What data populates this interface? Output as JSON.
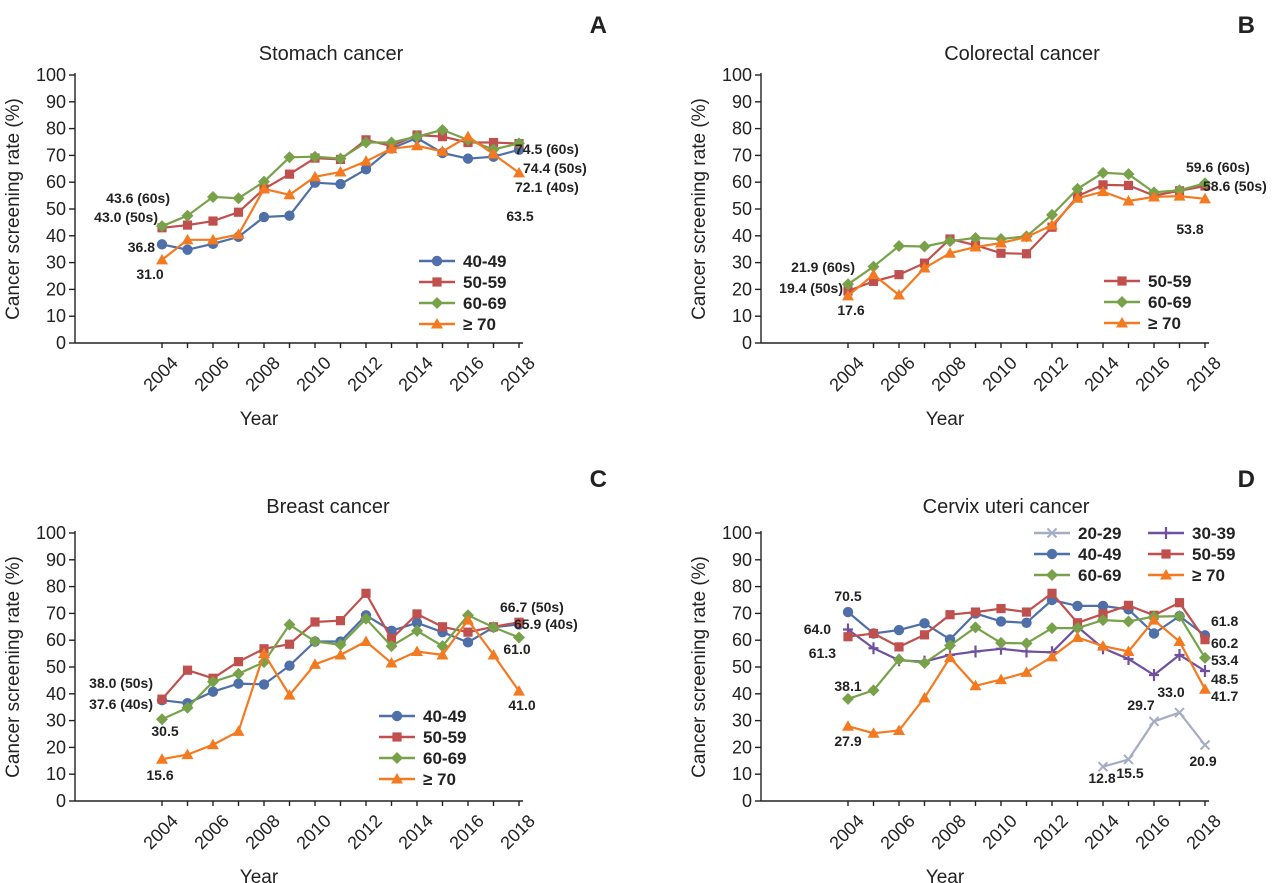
{
  "chart_data": [
    {
      "type": "line",
      "panel": "A",
      "title": "Stomach cancer",
      "xlabel": "Year",
      "ylabel": "Cancer screening rate (%)",
      "ylim": [
        0,
        100
      ],
      "yticks": [
        0,
        10,
        20,
        30,
        40,
        50,
        60,
        70,
        80,
        90,
        100
      ],
      "xtick_labels": [
        "2004",
        "2006",
        "2008",
        "2010",
        "2012",
        "2014",
        "2016",
        "2018"
      ],
      "x": [
        2004,
        2005,
        2006,
        2007,
        2008,
        2009,
        2010,
        2011,
        2012,
        2013,
        2014,
        2015,
        2016,
        2017,
        2018
      ],
      "legend_position": "bottom-right",
      "series": [
        {
          "name": "40-49",
          "color": "#4f6fa8",
          "marker": "circle",
          "values": [
            36.8,
            34.8,
            37.0,
            39.6,
            47.0,
            47.5,
            59.8,
            59.3,
            64.8,
            72.6,
            76.5,
            70.9,
            68.8,
            69.5,
            72.1
          ]
        },
        {
          "name": "50-59",
          "color": "#c0504d",
          "marker": "square",
          "values": [
            43.0,
            44.0,
            45.5,
            48.8,
            57.5,
            63.0,
            69.0,
            68.5,
            75.8,
            73.5,
            77.6,
            77.0,
            74.8,
            74.8,
            74.4
          ]
        },
        {
          "name": "60-69",
          "color": "#77a24a",
          "marker": "diamond",
          "values": [
            43.6,
            47.5,
            54.5,
            54.0,
            60.2,
            69.3,
            69.5,
            68.8,
            74.8,
            74.8,
            77.0,
            79.5,
            75.8,
            72.2,
            74.5
          ]
        },
        {
          "name": "≥ 70",
          "color": "#f47a21",
          "marker": "triangle",
          "values": [
            31.0,
            38.5,
            38.5,
            40.5,
            57.5,
            55.3,
            62.0,
            63.8,
            67.8,
            72.5,
            73.6,
            71.5,
            77.0,
            70.5,
            63.5
          ]
        }
      ],
      "annotations": [
        {
          "text": "43.6 (60s)",
          "x": 2004,
          "y": 43.6
        },
        {
          "text": "43.0 (50s)",
          "x": 2004,
          "y": 43.0
        },
        {
          "text": "36.8",
          "x": 2004,
          "y": 36.8
        },
        {
          "text": "31.0",
          "x": 2004,
          "y": 31.0
        },
        {
          "text": "74.5 (60s)",
          "x": 2018,
          "y": 74.5
        },
        {
          "text": "74.4 (50s)",
          "x": 2018,
          "y": 74.4
        },
        {
          "text": "72.1 (40s)",
          "x": 2018,
          "y": 72.1
        },
        {
          "text": "63.5",
          "x": 2018,
          "y": 63.5
        }
      ]
    },
    {
      "type": "line",
      "panel": "B",
      "title": "Colorectal cancer",
      "xlabel": "Year",
      "ylabel": "Cancer screening rate (%)",
      "ylim": [
        0,
        100
      ],
      "yticks": [
        0,
        10,
        20,
        30,
        40,
        50,
        60,
        70,
        80,
        90,
        100
      ],
      "xtick_labels": [
        "2004",
        "2006",
        "2008",
        "2010",
        "2012",
        "2014",
        "2016",
        "2018"
      ],
      "x": [
        2004,
        2005,
        2006,
        2007,
        2008,
        2009,
        2010,
        2011,
        2012,
        2013,
        2014,
        2015,
        2016,
        2017,
        2018
      ],
      "legend_position": "bottom-right",
      "series": [
        {
          "name": "50-59",
          "color": "#c0504d",
          "marker": "square",
          "values": [
            19.4,
            23.0,
            25.5,
            29.8,
            38.8,
            36.5,
            33.5,
            33.3,
            43.2,
            54.8,
            59.0,
            58.8,
            55.0,
            56.8,
            58.6
          ]
        },
        {
          "name": "60-69",
          "color": "#77a24a",
          "marker": "diamond",
          "values": [
            21.9,
            28.5,
            36.2,
            36.0,
            38.0,
            39.2,
            38.8,
            39.8,
            47.8,
            57.5,
            63.5,
            63.0,
            56.2,
            57.0,
            59.6
          ]
        },
        {
          "name": "≥ 70",
          "color": "#f47a21",
          "marker": "triangle",
          "values": [
            17.6,
            25.5,
            17.9,
            28.0,
            33.5,
            35.8,
            37.3,
            39.5,
            44.0,
            54.0,
            56.5,
            53.0,
            54.5,
            54.8,
            53.8
          ]
        }
      ],
      "annotations": [
        {
          "text": "21.9 (60s)",
          "x": 2004,
          "y": 21.9
        },
        {
          "text": "19.4 (50s)",
          "x": 2004,
          "y": 19.4
        },
        {
          "text": "17.6",
          "x": 2004,
          "y": 17.6
        },
        {
          "text": "59.6 (60s)",
          "x": 2018,
          "y": 59.6
        },
        {
          "text": "58.6 (50s)",
          "x": 2018,
          "y": 58.6
        },
        {
          "text": "53.8",
          "x": 2018,
          "y": 53.8
        }
      ]
    },
    {
      "type": "line",
      "panel": "C",
      "title": "Breast cancer",
      "xlabel": "Year",
      "ylabel": "Cancer screening rate (%)",
      "ylim": [
        0,
        100
      ],
      "yticks": [
        0,
        10,
        20,
        30,
        40,
        50,
        60,
        70,
        80,
        90,
        100
      ],
      "xtick_labels": [
        "2004",
        "2006",
        "2008",
        "2010",
        "2012",
        "2014",
        "2016",
        "2018"
      ],
      "x": [
        2004,
        2005,
        2006,
        2007,
        2008,
        2009,
        2010,
        2011,
        2012,
        2013,
        2014,
        2015,
        2016,
        2017,
        2018
      ],
      "legend_position": "bottom-right",
      "series": [
        {
          "name": "40-49",
          "color": "#4f6fa8",
          "marker": "circle",
          "values": [
            37.6,
            36.5,
            40.8,
            43.8,
            43.5,
            50.5,
            59.5,
            59.5,
            69.3,
            63.5,
            66.5,
            63.0,
            59.2,
            64.8,
            65.9
          ]
        },
        {
          "name": "50-59",
          "color": "#c0504d",
          "marker": "square",
          "values": [
            38.0,
            48.8,
            45.8,
            52.0,
            56.8,
            58.5,
            66.8,
            67.3,
            77.5,
            60.5,
            69.8,
            65.0,
            63.0,
            65.0,
            66.7
          ]
        },
        {
          "name": "60-69",
          "color": "#77a24a",
          "marker": "diamond",
          "values": [
            30.5,
            34.8,
            44.5,
            47.5,
            51.8,
            65.8,
            59.5,
            58.3,
            68.0,
            57.8,
            63.5,
            57.8,
            69.3,
            64.8,
            61.0
          ]
        },
        {
          "name": "≥ 70",
          "color": "#f47a21",
          "marker": "triangle",
          "values": [
            15.6,
            17.3,
            21.0,
            26.0,
            55.0,
            39.5,
            51.0,
            54.5,
            59.5,
            51.5,
            55.8,
            54.5,
            67.5,
            54.5,
            41.0
          ]
        }
      ],
      "annotations": [
        {
          "text": "38.0 (50s)",
          "x": 2004,
          "y": 38.0
        },
        {
          "text": "37.6 (40s)",
          "x": 2004,
          "y": 37.6
        },
        {
          "text": "30.5",
          "x": 2004,
          "y": 30.5
        },
        {
          "text": "15.6",
          "x": 2004,
          "y": 15.6
        },
        {
          "text": "66.7 (50s)",
          "x": 2018,
          "y": 66.7
        },
        {
          "text": "65.9 (40s)",
          "x": 2018,
          "y": 65.9
        },
        {
          "text": "61.0",
          "x": 2018,
          "y": 61.0
        },
        {
          "text": "41.0",
          "x": 2018,
          "y": 41.0
        }
      ]
    },
    {
      "type": "line",
      "panel": "D",
      "title": "Cervix uteri cancer",
      "xlabel": "Year",
      "ylabel": "Cancer screening rate (%)",
      "ylim": [
        0,
        100
      ],
      "yticks": [
        0,
        10,
        20,
        30,
        40,
        50,
        60,
        70,
        80,
        90,
        100
      ],
      "xtick_labels": [
        "2004",
        "2006",
        "2008",
        "2010",
        "2012",
        "2014",
        "2016",
        "2018"
      ],
      "x": [
        2004,
        2005,
        2006,
        2007,
        2008,
        2009,
        2010,
        2011,
        2012,
        2013,
        2014,
        2015,
        2016,
        2017,
        2018
      ],
      "legend_position": "top-right",
      "series": [
        {
          "name": "20-29",
          "color": "#a4adc3",
          "marker": "x",
          "values": [
            null,
            null,
            null,
            null,
            null,
            null,
            null,
            null,
            null,
            null,
            12.8,
            15.5,
            29.7,
            33.0,
            20.9
          ]
        },
        {
          "name": "30-39",
          "color": "#6f4fa0",
          "marker": "plus",
          "values": [
            64.0,
            57.0,
            52.5,
            52.0,
            54.5,
            55.8,
            56.8,
            55.8,
            55.5,
            65.0,
            57.0,
            53.0,
            47.0,
            54.5,
            48.5
          ]
        },
        {
          "name": "40-49",
          "color": "#4f6fa8",
          "marker": "circle",
          "values": [
            70.5,
            62.5,
            63.8,
            66.3,
            60.3,
            70.0,
            67.0,
            66.5,
            75.0,
            72.8,
            72.8,
            71.5,
            62.5,
            69.0,
            61.8
          ]
        },
        {
          "name": "50-59",
          "color": "#c0504d",
          "marker": "square",
          "values": [
            61.3,
            62.5,
            57.5,
            62.0,
            69.5,
            70.5,
            71.8,
            70.5,
            77.5,
            66.5,
            69.8,
            73.0,
            69.3,
            74.0,
            60.2
          ]
        },
        {
          "name": "60-69",
          "color": "#77a24a",
          "marker": "diamond",
          "values": [
            38.1,
            41.3,
            52.8,
            51.5,
            58.0,
            64.8,
            59.0,
            58.8,
            64.5,
            64.5,
            67.5,
            67.0,
            68.8,
            69.0,
            53.4
          ]
        },
        {
          "name": "≥ 70",
          "color": "#f47a21",
          "marker": "triangle",
          "values": [
            27.9,
            25.3,
            26.3,
            38.5,
            53.5,
            43.0,
            45.3,
            48.0,
            53.8,
            61.0,
            57.8,
            55.8,
            67.5,
            59.5,
            41.7
          ]
        }
      ],
      "annotations": [
        {
          "text": "70.5",
          "x": 2004,
          "y": 70.5
        },
        {
          "text": "64.0",
          "x": 2004,
          "y": 64.0
        },
        {
          "text": "61.3",
          "x": 2004,
          "y": 61.3
        },
        {
          "text": "38.1",
          "x": 2004,
          "y": 38.1
        },
        {
          "text": "27.9",
          "x": 2004,
          "y": 27.9
        },
        {
          "text": "12.8",
          "x": 2014,
          "y": 12.8
        },
        {
          "text": "15.5",
          "x": 2015,
          "y": 15.5
        },
        {
          "text": "29.7",
          "x": 2016,
          "y": 29.7
        },
        {
          "text": "33.0",
          "x": 2017,
          "y": 33.0
        },
        {
          "text": "20.9",
          "x": 2018,
          "y": 20.9
        },
        {
          "text": "61.8",
          "x": 2018,
          "y": 61.8
        },
        {
          "text": "60.2",
          "x": 2018,
          "y": 60.2
        },
        {
          "text": "53.4",
          "x": 2018,
          "y": 53.4
        },
        {
          "text": "48.5",
          "x": 2018,
          "y": 48.5
        },
        {
          "text": "41.7",
          "x": 2018,
          "y": 41.7
        }
      ]
    }
  ]
}
